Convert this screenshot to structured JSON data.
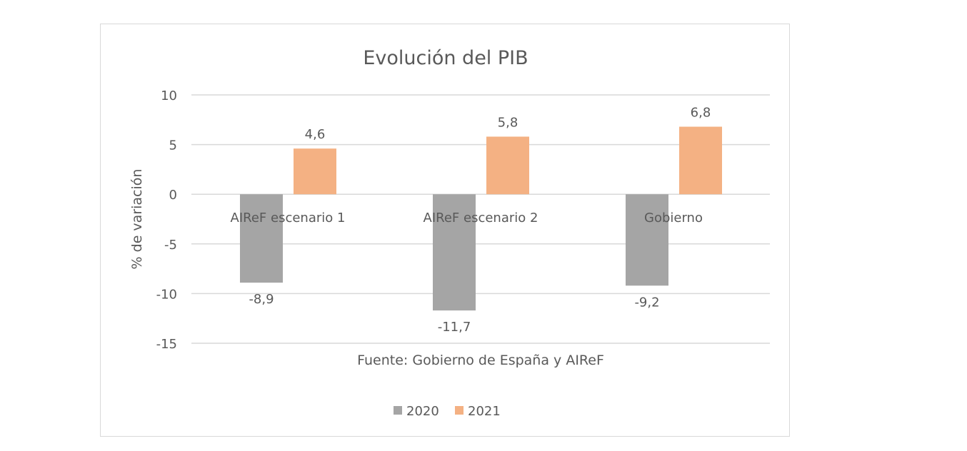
{
  "chart_data": {
    "type": "bar",
    "title": "Evolución del PIB",
    "ylabel": "% de variación",
    "xlabel": "Fuente: Gobierno de España y AIReF",
    "categories": [
      "AIReF escenario 1",
      "AIReF escenario 2",
      "Gobierno"
    ],
    "series": [
      {
        "name": "2020",
        "values": [
          -8.9,
          -11.7,
          -9.2
        ],
        "labels": [
          "-8,9",
          "-11,7",
          "-9,2"
        ],
        "color": "#a5a5a5"
      },
      {
        "name": "2021",
        "values": [
          4.6,
          5.8,
          6.8
        ],
        "labels": [
          "4,6",
          "5,8",
          "6,8"
        ],
        "color": "#f4b183"
      }
    ],
    "ylim": [
      -15,
      10
    ],
    "yticks": [
      10,
      5,
      0,
      -5,
      -10,
      -15
    ],
    "ytick_labels": [
      "10",
      "5",
      "0",
      "-5",
      "-10",
      "-15"
    ],
    "grid": true,
    "legend": "bottom"
  }
}
